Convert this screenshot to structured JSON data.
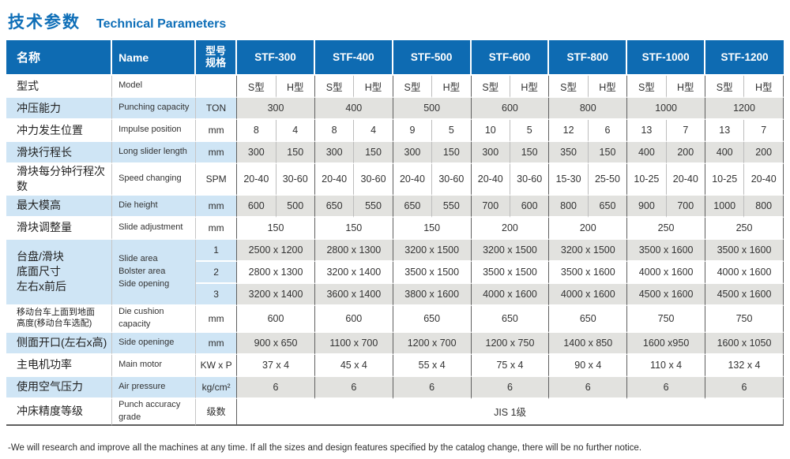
{
  "title": {
    "zh": "技术参数",
    "en": "Technical Parameters"
  },
  "table": {
    "col_name_zh": "名称",
    "col_name_en": "Name",
    "col_spec": "型号\n规格",
    "sub_columns": [
      "S型",
      "H型"
    ],
    "models": [
      "STF-300",
      "STF-400",
      "STF-500",
      "STF-600",
      "STF-800",
      "STF-1000",
      "STF-1200"
    ],
    "rows": [
      {
        "id": "model",
        "zh": "型式",
        "en": "Model",
        "unit": "",
        "labelBlue": false,
        "shade": "white",
        "cells": [
          {
            "t": "S型",
            "s": 1
          },
          {
            "t": "H型",
            "s": 1
          },
          {
            "t": "S型",
            "s": 1
          },
          {
            "t": "H型",
            "s": 1
          },
          {
            "t": "S型",
            "s": 1
          },
          {
            "t": "H型",
            "s": 1
          },
          {
            "t": "S型",
            "s": 1
          },
          {
            "t": "H型",
            "s": 1
          },
          {
            "t": "S型",
            "s": 1
          },
          {
            "t": "H型",
            "s": 1
          },
          {
            "t": "S型",
            "s": 1
          },
          {
            "t": "H型",
            "s": 1
          },
          {
            "t": "S型",
            "s": 1
          },
          {
            "t": "H型",
            "s": 1
          }
        ]
      },
      {
        "id": "punching-capacity",
        "zh": "冲压能力",
        "en": "Punching capacity",
        "unit": "TON",
        "labelBlue": true,
        "shade": "gray",
        "cells": [
          {
            "t": "300",
            "s": 2
          },
          {
            "t": "400",
            "s": 2
          },
          {
            "t": "500",
            "s": 2
          },
          {
            "t": "600",
            "s": 2
          },
          {
            "t": "800",
            "s": 2
          },
          {
            "t": "1000",
            "s": 2
          },
          {
            "t": "1200",
            "s": 2
          }
        ]
      },
      {
        "id": "impulse-position",
        "zh": "冲力发生位置",
        "en": "Impulse position",
        "unit": "mm",
        "labelBlue": false,
        "shade": "white",
        "cells": [
          {
            "t": "8",
            "s": 1
          },
          {
            "t": "4",
            "s": 1
          },
          {
            "t": "8",
            "s": 1
          },
          {
            "t": "4",
            "s": 1
          },
          {
            "t": "9",
            "s": 1
          },
          {
            "t": "5",
            "s": 1
          },
          {
            "t": "10",
            "s": 1
          },
          {
            "t": "5",
            "s": 1
          },
          {
            "t": "12",
            "s": 1
          },
          {
            "t": "6",
            "s": 1
          },
          {
            "t": "13",
            "s": 1
          },
          {
            "t": "7",
            "s": 1
          },
          {
            "t": "13",
            "s": 1
          },
          {
            "t": "7",
            "s": 1
          }
        ]
      },
      {
        "id": "slider-length",
        "zh": "滑块行程长",
        "en": "Long slider length",
        "unit": "mm",
        "labelBlue": true,
        "shade": "gray",
        "cells": [
          {
            "t": "300",
            "s": 1
          },
          {
            "t": "150",
            "s": 1
          },
          {
            "t": "300",
            "s": 1
          },
          {
            "t": "150",
            "s": 1
          },
          {
            "t": "300",
            "s": 1
          },
          {
            "t": "150",
            "s": 1
          },
          {
            "t": "300",
            "s": 1
          },
          {
            "t": "150",
            "s": 1
          },
          {
            "t": "350",
            "s": 1
          },
          {
            "t": "150",
            "s": 1
          },
          {
            "t": "400",
            "s": 1
          },
          {
            "t": "200",
            "s": 1
          },
          {
            "t": "400",
            "s": 1
          },
          {
            "t": "200",
            "s": 1
          }
        ]
      },
      {
        "id": "speed-changing",
        "zh": "滑块每分钟行程次数",
        "en": "Speed changing",
        "unit": "SPM",
        "labelBlue": false,
        "shade": "white",
        "cells": [
          {
            "t": "20-40",
            "s": 1
          },
          {
            "t": "30-60",
            "s": 1
          },
          {
            "t": "20-40",
            "s": 1
          },
          {
            "t": "30-60",
            "s": 1
          },
          {
            "t": "20-40",
            "s": 1
          },
          {
            "t": "30-60",
            "s": 1
          },
          {
            "t": "20-40",
            "s": 1
          },
          {
            "t": "30-60",
            "s": 1
          },
          {
            "t": "15-30",
            "s": 1
          },
          {
            "t": "25-50",
            "s": 1
          },
          {
            "t": "10-25",
            "s": 1
          },
          {
            "t": "20-40",
            "s": 1
          },
          {
            "t": "10-25",
            "s": 1
          },
          {
            "t": "20-40",
            "s": 1
          }
        ]
      },
      {
        "id": "die-height",
        "zh": "最大模高",
        "en": "Die height",
        "unit": "mm",
        "labelBlue": true,
        "shade": "gray",
        "cells": [
          {
            "t": "600",
            "s": 1
          },
          {
            "t": "500",
            "s": 1
          },
          {
            "t": "650",
            "s": 1
          },
          {
            "t": "550",
            "s": 1
          },
          {
            "t": "650",
            "s": 1
          },
          {
            "t": "550",
            "s": 1
          },
          {
            "t": "700",
            "s": 1
          },
          {
            "t": "600",
            "s": 1
          },
          {
            "t": "800",
            "s": 1
          },
          {
            "t": "650",
            "s": 1
          },
          {
            "t": "900",
            "s": 1
          },
          {
            "t": "700",
            "s": 1
          },
          {
            "t": "1000",
            "s": 1
          },
          {
            "t": "800",
            "s": 1
          }
        ]
      },
      {
        "id": "slide-adjustment",
        "zh": "滑块调整量",
        "en": "Slide adjustment",
        "unit": "mm",
        "labelBlue": false,
        "shade": "white",
        "cells": [
          {
            "t": "150",
            "s": 2
          },
          {
            "t": "150",
            "s": 2
          },
          {
            "t": "150",
            "s": 2
          },
          {
            "t": "200",
            "s": 2
          },
          {
            "t": "200",
            "s": 2
          },
          {
            "t": "250",
            "s": 2
          },
          {
            "t": "250",
            "s": 2
          }
        ]
      },
      {
        "id": "bolster-area-1",
        "zh": "台盘/滑块\n底面尺寸\n左右x前后",
        "en": "Slide area\nBolster area\nSide opening",
        "labelRowspan": 3,
        "unit": "1",
        "labelBlue": true,
        "unitBlue": true,
        "shade": "gray",
        "cells": [
          {
            "t": "2500 x 1200",
            "s": 2
          },
          {
            "t": "2800 x 1300",
            "s": 2
          },
          {
            "t": "3200 x 1500",
            "s": 2
          },
          {
            "t": "3200 x 1500",
            "s": 2
          },
          {
            "t": "3200 x 1500",
            "s": 2
          },
          {
            "t": "3500 x 1600",
            "s": 2
          },
          {
            "t": "3500 x 1600",
            "s": 2
          }
        ]
      },
      {
        "id": "bolster-area-2",
        "unit": "2",
        "unitBlue": true,
        "shade": "white",
        "cells": [
          {
            "t": "2800 x 1300",
            "s": 2
          },
          {
            "t": "3200 x 1400",
            "s": 2
          },
          {
            "t": "3500 x 1500",
            "s": 2
          },
          {
            "t": "3500 x 1500",
            "s": 2
          },
          {
            "t": "3500 x 1600",
            "s": 2
          },
          {
            "t": "4000 x 1600",
            "s": 2
          },
          {
            "t": "4000 x 1600",
            "s": 2
          }
        ]
      },
      {
        "id": "bolster-area-3",
        "unit": "3",
        "unitBlue": true,
        "shade": "gray",
        "cells": [
          {
            "t": "3200 x 1400",
            "s": 2
          },
          {
            "t": "3600 x 1400",
            "s": 2
          },
          {
            "t": "3800 x 1600",
            "s": 2
          },
          {
            "t": "4000 x 1600",
            "s": 2
          },
          {
            "t": "4000 x 1600",
            "s": 2
          },
          {
            "t": "4500 x 1600",
            "s": 2
          },
          {
            "t": "4500 x 1600",
            "s": 2
          }
        ]
      },
      {
        "id": "die-cushion",
        "zh": "移动台车上面到地面\n高度(移动台车选配)",
        "en": "Die cushion capacity",
        "unit": "mm",
        "labelBlue": false,
        "shade": "white",
        "smallZh": true,
        "cells": [
          {
            "t": "600",
            "s": 2
          },
          {
            "t": "600",
            "s": 2
          },
          {
            "t": "650",
            "s": 2
          },
          {
            "t": "650",
            "s": 2
          },
          {
            "t": "650",
            "s": 2
          },
          {
            "t": "750",
            "s": 2
          },
          {
            "t": "750",
            "s": 2
          }
        ]
      },
      {
        "id": "side-opening",
        "zh": "侧面开口(左右x高)",
        "en": "Side openinge",
        "unit": "mm",
        "labelBlue": true,
        "shade": "gray",
        "cells": [
          {
            "t": "900 x 650",
            "s": 2
          },
          {
            "t": "1100 x 700",
            "s": 2
          },
          {
            "t": "1200 x 700",
            "s": 2
          },
          {
            "t": "1200 x 750",
            "s": 2
          },
          {
            "t": "1400 x 850",
            "s": 2
          },
          {
            "t": "1600 x950",
            "s": 2
          },
          {
            "t": "1600 x 1050",
            "s": 2
          }
        ]
      },
      {
        "id": "main-motor",
        "zh": "主电机功率",
        "en": "Main motor",
        "unit": "KW x P",
        "labelBlue": false,
        "shade": "white",
        "cells": [
          {
            "t": "37 x 4",
            "s": 2
          },
          {
            "t": "45 x 4",
            "s": 2
          },
          {
            "t": "55 x 4",
            "s": 2
          },
          {
            "t": "75 x 4",
            "s": 2
          },
          {
            "t": "90 x 4",
            "s": 2
          },
          {
            "t": "110 x 4",
            "s": 2
          },
          {
            "t": "132 x 4",
            "s": 2
          }
        ]
      },
      {
        "id": "air-pressure",
        "zh": "使用空气压力",
        "en": "Air pressure",
        "unit": "kg/cm²",
        "labelBlue": true,
        "shade": "gray",
        "cells": [
          {
            "t": "6",
            "s": 2
          },
          {
            "t": "6",
            "s": 2
          },
          {
            "t": "6",
            "s": 2
          },
          {
            "t": "6",
            "s": 2
          },
          {
            "t": "6",
            "s": 2
          },
          {
            "t": "6",
            "s": 2
          },
          {
            "t": "6",
            "s": 2
          }
        ]
      },
      {
        "id": "accuracy-grade",
        "zh": "冲床精度等级",
        "en": "Punch accuracy grade",
        "unit": "级数",
        "labelBlue": false,
        "shade": "white",
        "cells": [
          {
            "t": "JIS 1级",
            "s": 14
          }
        ]
      }
    ]
  },
  "footer_note": "-We will research and improve all the machines at any time. If all the sizes and design features specified by the catalog change, there will be no further notice."
}
